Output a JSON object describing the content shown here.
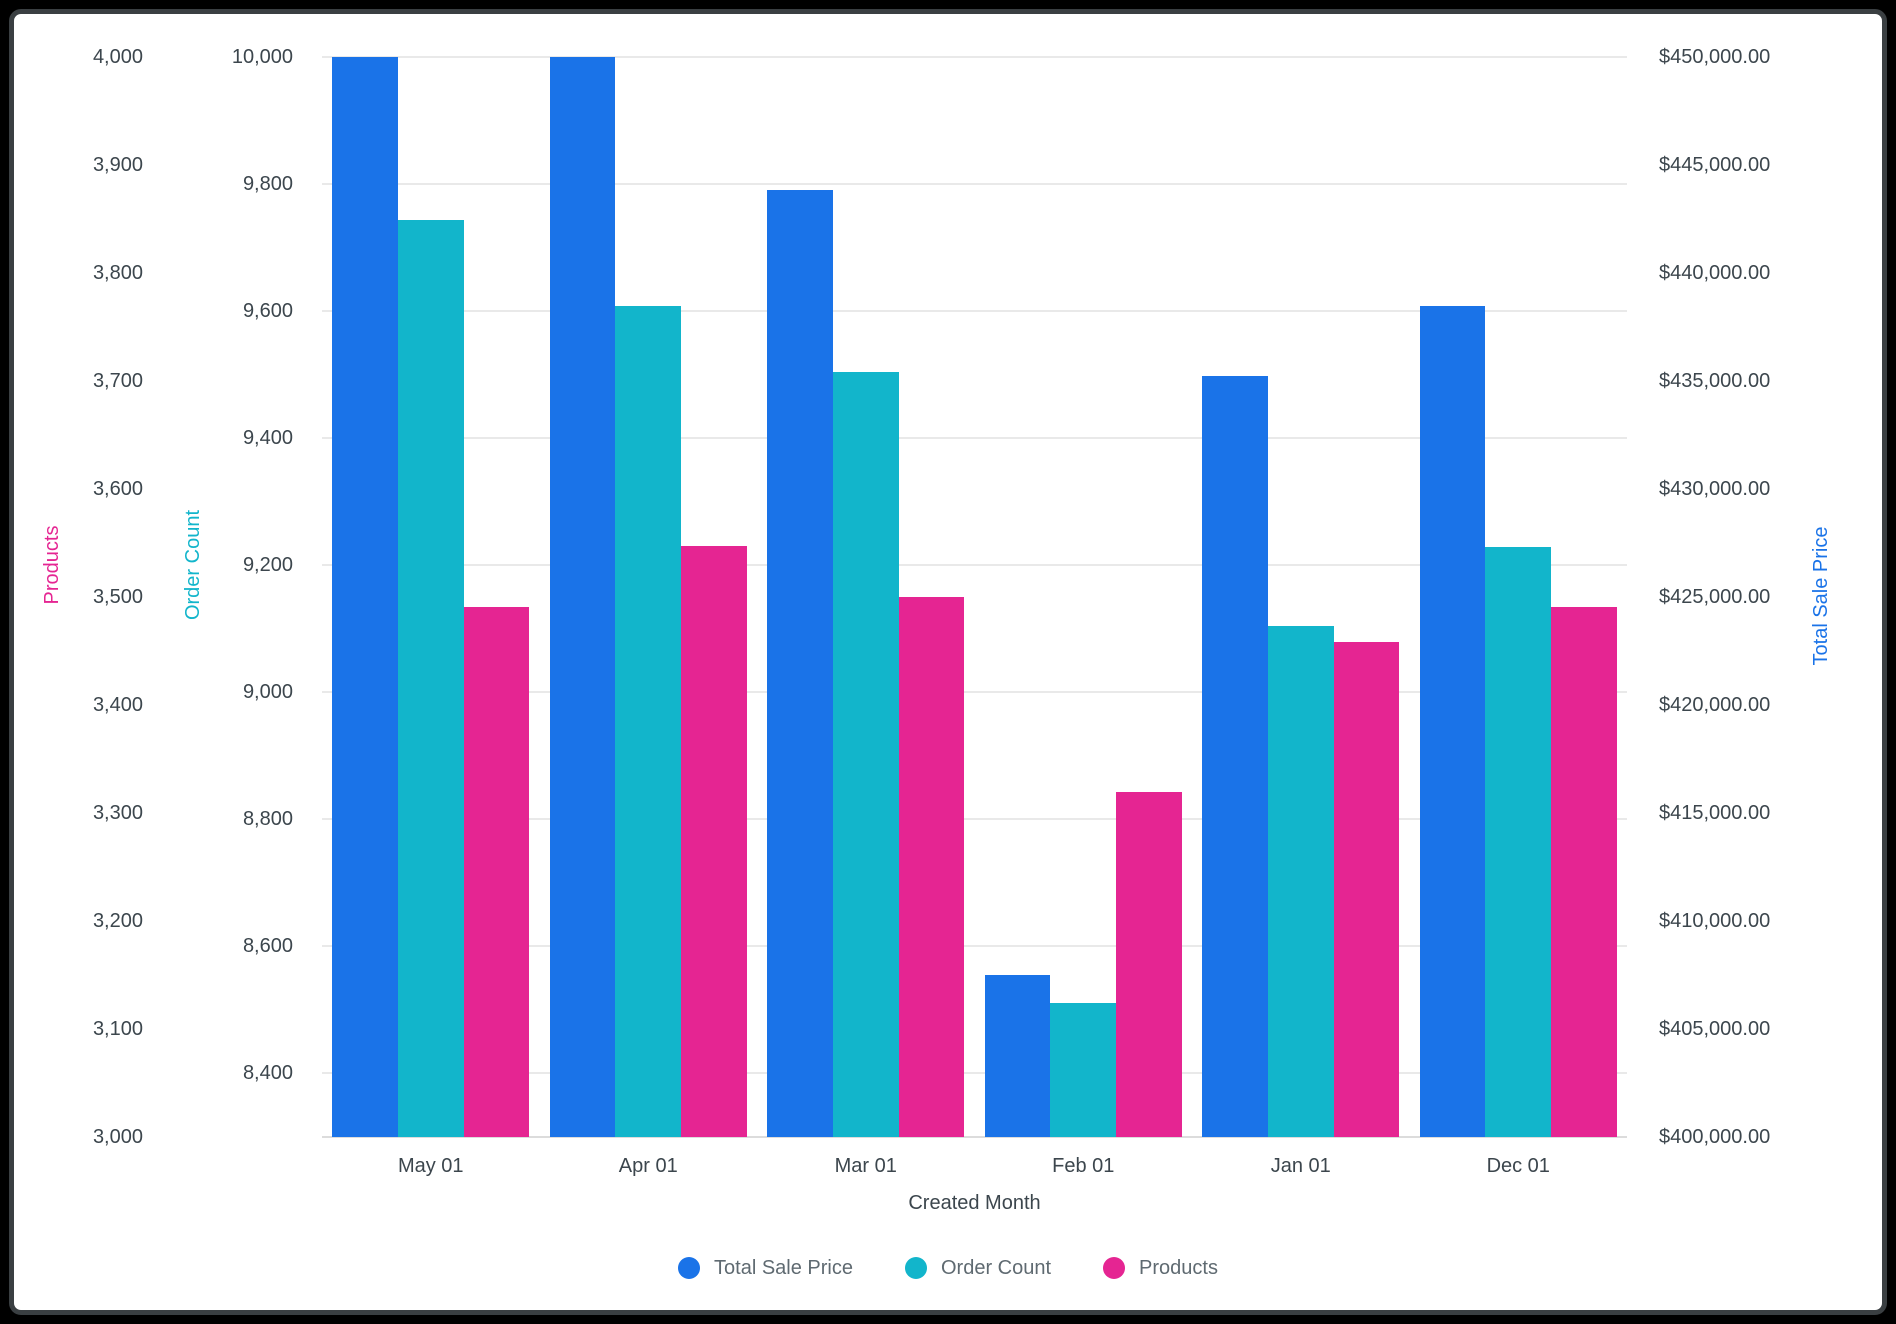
{
  "frame": {
    "background_color": "#000000",
    "border_color": "#3a3f42",
    "card_background": "#ffffff"
  },
  "chart_data": {
    "type": "bar",
    "title": "",
    "xlabel": "Created Month",
    "categories": [
      "May 01",
      "Apr 01",
      "Mar 01",
      "Feb 01",
      "Jan 01",
      "Dec 01"
    ],
    "series": [
      {
        "name": "Total Sale Price",
        "axis": "price",
        "color": "#1a73e8",
        "values": [
          450000,
          450000,
          443840,
          407500,
          435230,
          438470
        ]
      },
      {
        "name": "Order Count",
        "axis": "order",
        "color": "#12b5cb",
        "values": [
          9743,
          9608,
          9504,
          8511,
          9105,
          9229
        ]
      },
      {
        "name": "Products",
        "axis": "products",
        "color": "#e52592",
        "values": [
          3491,
          3547,
          3500,
          3319,
          3458,
          3491
        ]
      }
    ],
    "axes": {
      "products": {
        "title": "Products",
        "color": "#e52592",
        "side": "far-left",
        "min": 3000,
        "max": 4000,
        "ticks": [
          "4,000",
          "3,900",
          "3,800",
          "3,700",
          "3,600",
          "3,500",
          "3,400",
          "3,300",
          "3,200",
          "3,100",
          "3,000"
        ]
      },
      "order": {
        "title": "Order Count",
        "color": "#12b5cb",
        "side": "left",
        "min": 8300,
        "max": 10000,
        "ticks": [
          "10,000",
          "9,800",
          "9,600",
          "9,400",
          "9,200",
          "9,000",
          "8,800",
          "8,600",
          "8,400"
        ]
      },
      "price": {
        "title": "Total Sale Price",
        "color": "#1a73e8",
        "side": "right",
        "min": 400000,
        "max": 450000,
        "ticks": [
          "$450,000.00",
          "$445,000.00",
          "$440,000.00",
          "$435,000.00",
          "$430,000.00",
          "$425,000.00",
          "$420,000.00",
          "$415,000.00",
          "$410,000.00",
          "$405,000.00",
          "$400,000.00"
        ]
      }
    },
    "grid": "horizontal lines at Order Count ticks",
    "legend_position": "bottom",
    "legend": [
      {
        "label": "Total Sale Price",
        "color": "#1a73e8"
      },
      {
        "label": "Order Count",
        "color": "#12b5cb"
      },
      {
        "label": "Products",
        "color": "#e52592"
      }
    ],
    "text_colors": {
      "ticks": "#3c464d",
      "legend": "#5f6a71"
    }
  }
}
